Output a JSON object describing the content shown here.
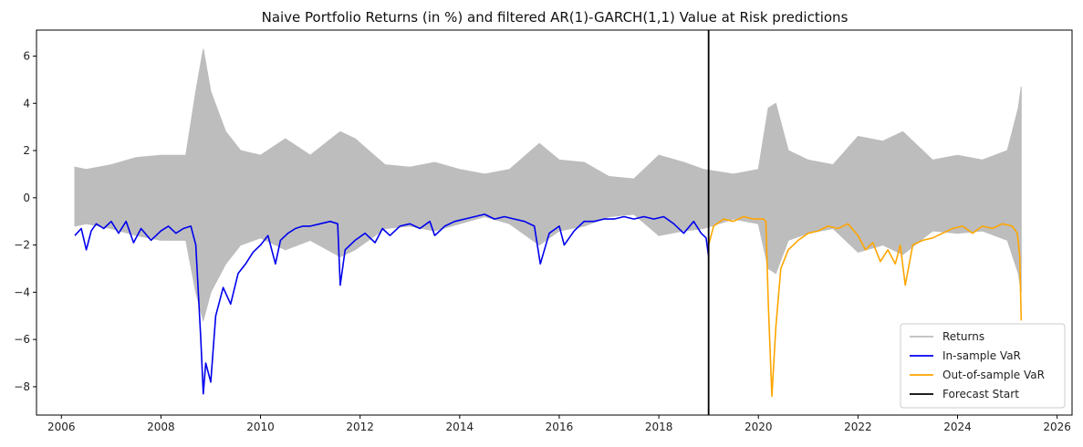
{
  "chart_data": {
    "type": "line",
    "title": "Naive Portfolio Returns (in %) and filtered AR(1)-GARCH(1,1) Value at Risk predictions",
    "xlabel": "",
    "ylabel": "",
    "xlim": [
      2005.5,
      2026.3
    ],
    "ylim": [
      -9.2,
      7.1
    ],
    "xticks": [
      2006,
      2008,
      2010,
      2012,
      2014,
      2016,
      2018,
      2020,
      2022,
      2024,
      2026
    ],
    "xtick_labels": [
      "2006",
      "2008",
      "2010",
      "2012",
      "2014",
      "2016",
      "2018",
      "2020",
      "2022",
      "2024",
      "2026"
    ],
    "yticks": [
      -8,
      -6,
      -4,
      -2,
      0,
      2,
      4,
      6
    ],
    "ytick_labels": [
      "−8",
      "−6",
      "−4",
      "−2",
      "0",
      "2",
      "4",
      "6"
    ],
    "legend_position": "bottom-right",
    "grid": false,
    "forecast_start": 2019.0,
    "series": [
      {
        "name": "Returns",
        "color": "#bdbdbd",
        "style": "band",
        "x": [
          2006.27,
          2006.5,
          2007.0,
          2007.5,
          2008.0,
          2008.5,
          2008.7,
          2008.85,
          2009.0,
          2009.3,
          2009.6,
          2010.0,
          2010.5,
          2011.0,
          2011.6,
          2011.9,
          2012.5,
          2013.0,
          2013.5,
          2014.0,
          2014.5,
          2015.0,
          2015.6,
          2016.0,
          2016.5,
          2017.0,
          2017.5,
          2018.0,
          2018.5,
          2018.9,
          2019.5,
          2020.0,
          2020.2,
          2020.35,
          2020.6,
          2021.0,
          2021.5,
          2022.0,
          2022.5,
          2022.9,
          2023.5,
          2024.0,
          2024.5,
          2025.0,
          2025.22,
          2025.28
        ],
        "high": [
          1.3,
          1.2,
          1.4,
          1.7,
          1.8,
          1.8,
          4.5,
          6.3,
          4.5,
          2.8,
          2.0,
          1.8,
          2.5,
          1.8,
          2.8,
          2.5,
          1.4,
          1.3,
          1.5,
          1.2,
          1.0,
          1.2,
          2.3,
          1.6,
          1.5,
          0.9,
          0.8,
          1.8,
          1.5,
          1.2,
          1.0,
          1.2,
          3.8,
          4.0,
          2.0,
          1.6,
          1.4,
          2.6,
          2.4,
          2.8,
          1.6,
          1.8,
          1.6,
          2.0,
          3.8,
          4.7
        ],
        "low": [
          -1.2,
          -1.1,
          -1.3,
          -1.6,
          -1.8,
          -1.8,
          -4.0,
          -5.2,
          -4.0,
          -2.8,
          -2.0,
          -1.7,
          -2.2,
          -1.8,
          -2.5,
          -2.2,
          -1.3,
          -1.2,
          -1.4,
          -1.1,
          -0.8,
          -1.1,
          -2.0,
          -1.4,
          -1.2,
          -0.8,
          -0.7,
          -1.6,
          -1.4,
          -1.3,
          -0.9,
          -1.1,
          -3.0,
          -3.2,
          -1.8,
          -1.5,
          -1.3,
          -2.3,
          -2.0,
          -2.4,
          -1.4,
          -1.5,
          -1.4,
          -1.8,
          -3.2,
          -4.0
        ]
      },
      {
        "name": "In-sample VaR",
        "color": "#0000ee",
        "x": [
          2006.27,
          2006.4,
          2006.5,
          2006.6,
          2006.7,
          2006.85,
          2007.0,
          2007.15,
          2007.3,
          2007.45,
          2007.6,
          2007.8,
          2008.0,
          2008.15,
          2008.3,
          2008.45,
          2008.6,
          2008.7,
          2008.8,
          2008.85,
          2008.9,
          2009.0,
          2009.1,
          2009.25,
          2009.4,
          2009.55,
          2009.7,
          2009.85,
          2010.0,
          2010.15,
          2010.3,
          2010.4,
          2010.55,
          2010.7,
          2010.85,
          2011.0,
          2011.2,
          2011.4,
          2011.55,
          2011.6,
          2011.7,
          2011.9,
          2012.1,
          2012.3,
          2012.45,
          2012.6,
          2012.8,
          2013.0,
          2013.2,
          2013.4,
          2013.5,
          2013.7,
          2013.9,
          2014.1,
          2014.3,
          2014.5,
          2014.7,
          2014.9,
          2015.1,
          2015.3,
          2015.5,
          2015.62,
          2015.8,
          2016.0,
          2016.1,
          2016.3,
          2016.5,
          2016.7,
          2016.9,
          2017.1,
          2017.3,
          2017.5,
          2017.7,
          2017.9,
          2018.1,
          2018.3,
          2018.5,
          2018.7,
          2018.85,
          2018.95,
          2019.0
        ],
        "y": [
          -1.6,
          -1.3,
          -2.2,
          -1.4,
          -1.1,
          -1.3,
          -1.0,
          -1.5,
          -1.0,
          -1.9,
          -1.3,
          -1.8,
          -1.4,
          -1.2,
          -1.5,
          -1.3,
          -1.2,
          -2.0,
          -6.0,
          -8.3,
          -7.0,
          -7.8,
          -5.0,
          -3.8,
          -4.5,
          -3.2,
          -2.8,
          -2.3,
          -2.0,
          -1.6,
          -2.8,
          -1.8,
          -1.5,
          -1.3,
          -1.2,
          -1.2,
          -1.1,
          -1.0,
          -1.1,
          -3.7,
          -2.2,
          -1.8,
          -1.5,
          -1.9,
          -1.3,
          -1.6,
          -1.2,
          -1.1,
          -1.3,
          -1.0,
          -1.6,
          -1.2,
          -1.0,
          -0.9,
          -0.8,
          -0.7,
          -0.9,
          -0.8,
          -0.9,
          -1.0,
          -1.2,
          -2.8,
          -1.5,
          -1.2,
          -2.0,
          -1.4,
          -1.0,
          -1.0,
          -0.9,
          -0.9,
          -0.8,
          -0.9,
          -0.8,
          -0.9,
          -0.8,
          -1.1,
          -1.5,
          -1.0,
          -1.5,
          -1.7,
          -2.5
        ]
      },
      {
        "name": "Out-of-sample VaR",
        "color": "#ffa500",
        "x": [
          2019.0,
          2019.1,
          2019.3,
          2019.5,
          2019.7,
          2019.9,
          2020.1,
          2020.15,
          2020.2,
          2020.27,
          2020.35,
          2020.45,
          2020.6,
          2020.8,
          2021.0,
          2021.2,
          2021.4,
          2021.6,
          2021.8,
          2022.0,
          2022.15,
          2022.3,
          2022.45,
          2022.6,
          2022.75,
          2022.85,
          2022.95,
          2023.1,
          2023.3,
          2023.5,
          2023.7,
          2023.9,
          2024.1,
          2024.3,
          2024.5,
          2024.7,
          2024.9,
          2025.1,
          2025.2,
          2025.25,
          2025.28
        ],
        "y": [
          -2.0,
          -1.2,
          -0.9,
          -1.0,
          -0.8,
          -0.9,
          -0.9,
          -1.0,
          -4.5,
          -8.4,
          -5.5,
          -3.0,
          -2.2,
          -1.8,
          -1.5,
          -1.4,
          -1.2,
          -1.3,
          -1.1,
          -1.6,
          -2.2,
          -1.9,
          -2.7,
          -2.2,
          -2.8,
          -2.0,
          -3.7,
          -2.0,
          -1.8,
          -1.7,
          -1.5,
          -1.3,
          -1.2,
          -1.5,
          -1.2,
          -1.3,
          -1.1,
          -1.2,
          -1.5,
          -2.5,
          -5.2
        ]
      },
      {
        "name": "Forecast Start",
        "color": "#000000",
        "x": [
          2019.0,
          2019.0
        ],
        "y": [
          -9.2,
          7.1
        ]
      }
    ]
  }
}
